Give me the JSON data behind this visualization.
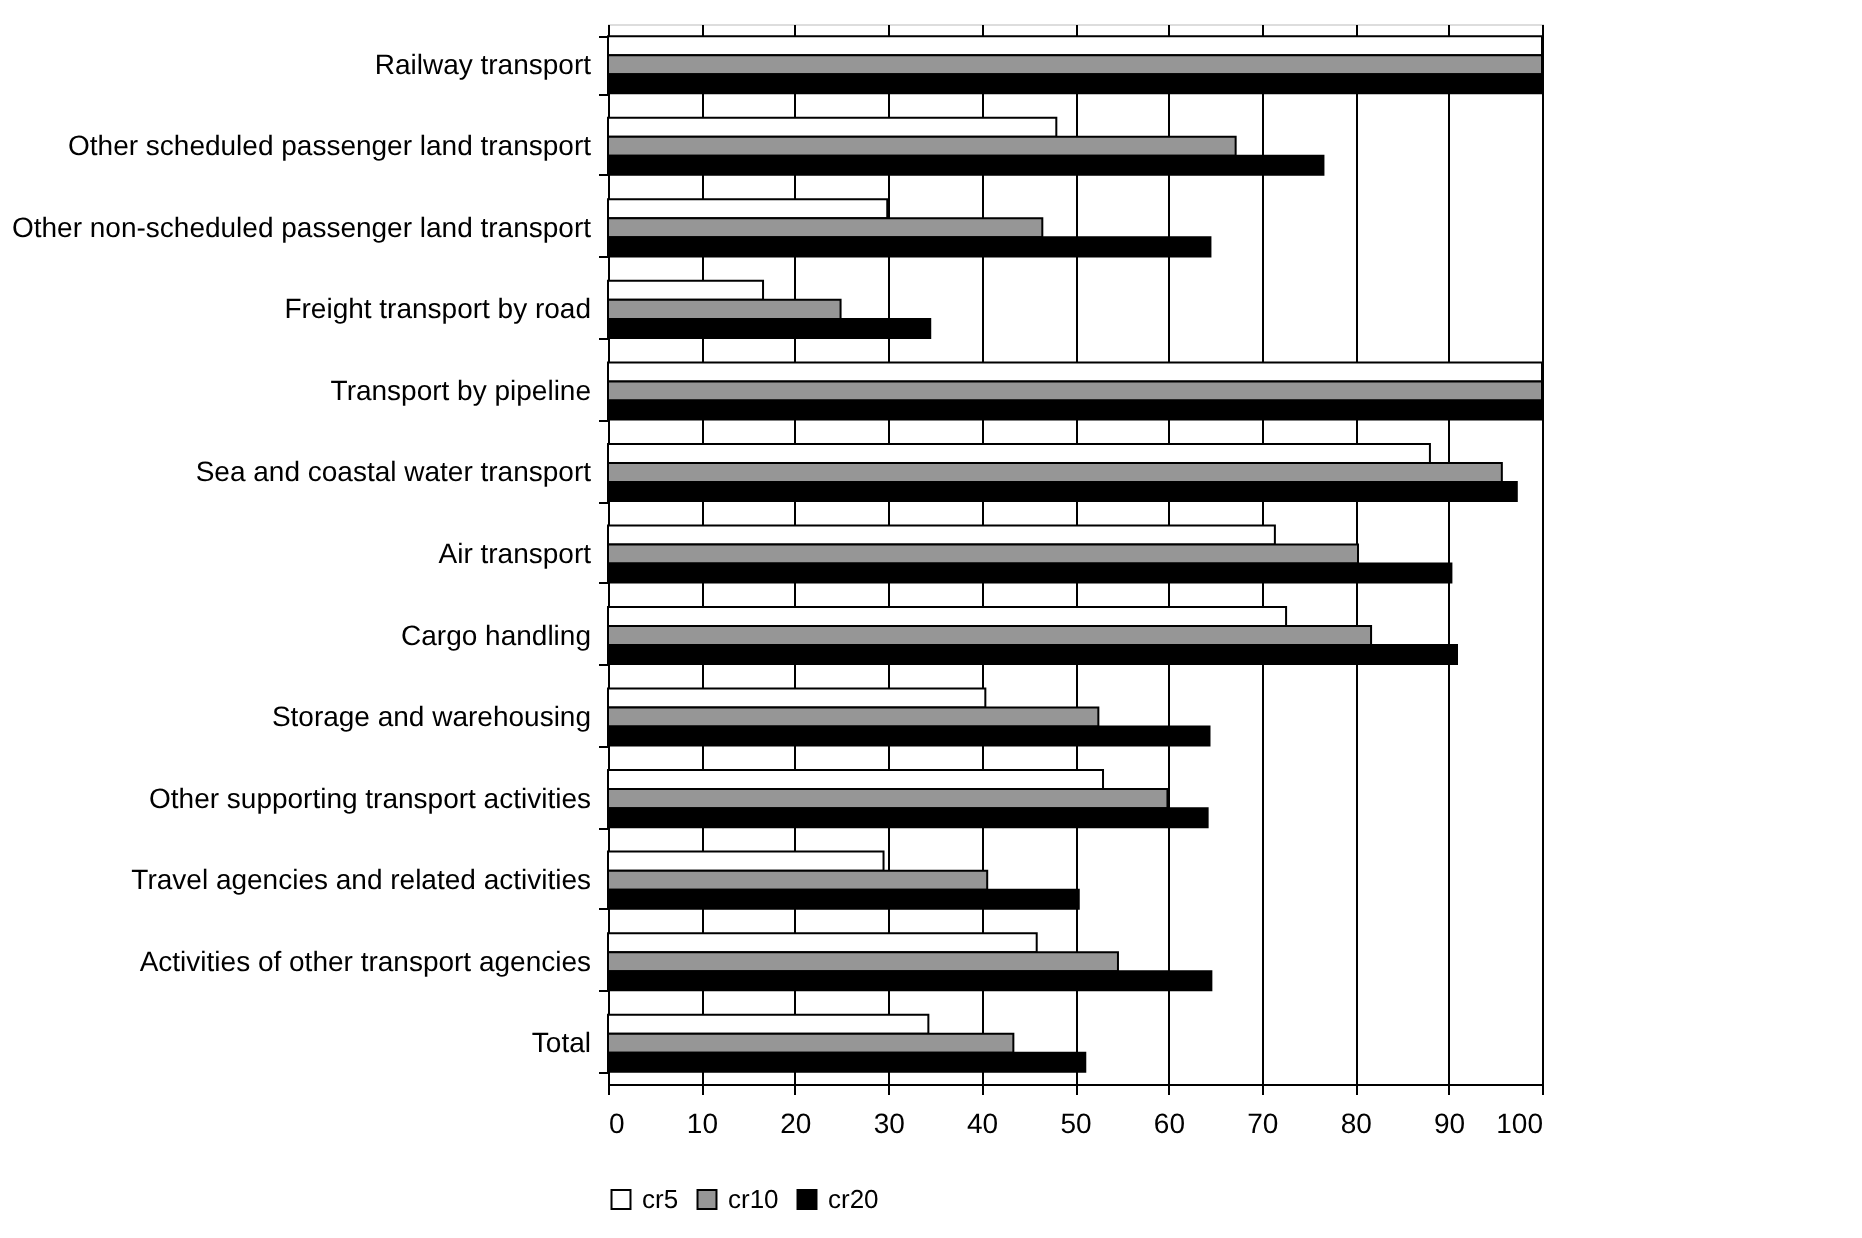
{
  "chart_data": {
    "type": "bar",
    "orientation": "horizontal",
    "categories": [
      "Railway transport",
      "Other scheduled passenger land transport",
      "Other non-scheduled passenger land transport",
      "Freight transport by road",
      "Transport by pipeline",
      "Sea and coastal water transport",
      "Air transport",
      "Cargo handling",
      "Storage and warehousing",
      "Other supporting transport activities",
      "Travel agencies and related activities",
      "Activities of other transport agencies",
      "Total"
    ],
    "series": [
      {
        "name": "cr5",
        "color": "#ffffff",
        "values": [
          100,
          48.0,
          29.9,
          16.6,
          100,
          88.0,
          71.4,
          72.6,
          40.4,
          53.0,
          29.5,
          45.9,
          34.3
        ]
      },
      {
        "name": "cr10",
        "color": "#969696",
        "values": [
          100,
          67.2,
          46.5,
          24.9,
          100,
          95.7,
          80.3,
          81.7,
          52.5,
          59.9,
          40.6,
          54.6,
          43.4
        ]
      },
      {
        "name": "cr20",
        "color": "#000000",
        "values": [
          100,
          76.6,
          64.5,
          34.5,
          100,
          97.3,
          90.3,
          90.9,
          64.4,
          64.2,
          50.4,
          64.6,
          51.1
        ]
      }
    ],
    "xlim": [
      0,
      100
    ],
    "xticks": [
      0,
      10,
      20,
      30,
      40,
      50,
      60,
      70,
      80,
      90,
      100
    ],
    "grid": "x",
    "legend": "bottom"
  }
}
